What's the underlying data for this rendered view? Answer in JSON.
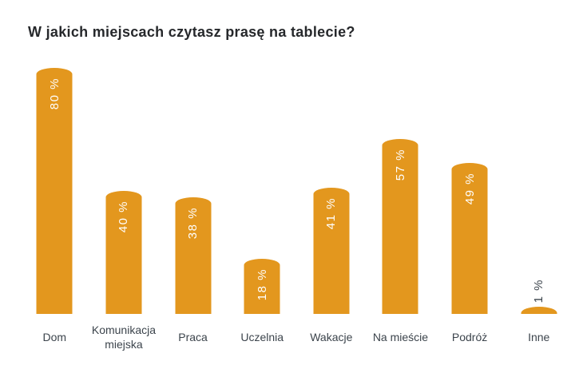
{
  "page": {
    "background_color": "#ffffff"
  },
  "chart_data": {
    "type": "bar",
    "title": "W jakich miejscach czytasz prasę na tablecie?",
    "categories": [
      "Dom",
      "Komunikacja miejska",
      "Praca",
      "Uczelnia",
      "Wakacje",
      "Na mieście",
      "Podróż",
      "Inne"
    ],
    "values": [
      80,
      40,
      38,
      18,
      41,
      57,
      49,
      1
    ],
    "value_labels": [
      "80 %",
      "40 %",
      "38 %",
      "18 %",
      "41 %",
      "57 %",
      "49 %",
      "1 %"
    ],
    "unit": "%",
    "xlabel": "",
    "ylabel": "",
    "grid": false,
    "legend": false,
    "axes_visible": false,
    "bar_color": "#E3971E",
    "value_label_color_inside": "#FFFFFF",
    "value_label_color_outside": "#3C444C",
    "category_label_color": "#3C444C",
    "title_color": "#26282B",
    "value_label_orientation": "vertical-bottom-to-top",
    "value_label_placement": "inside-top; outside-above for very short bars"
  }
}
